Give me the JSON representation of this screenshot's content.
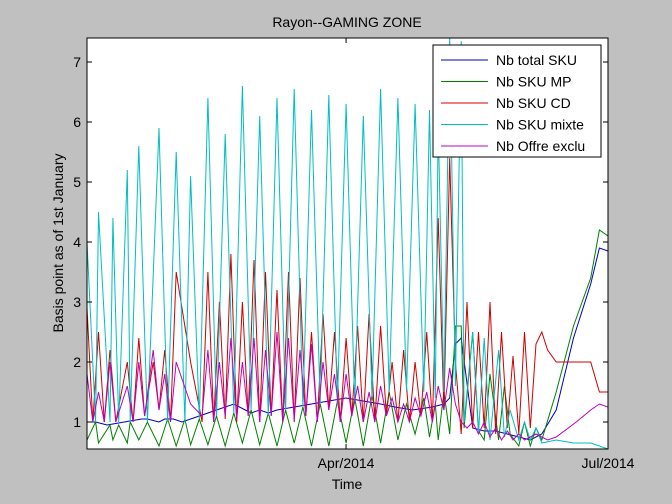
{
  "chart_data": {
    "type": "line",
    "title": "Rayon--GAMING ZONE",
    "xlabel": "Time",
    "ylabel": "Basis point as of 1st January",
    "x_ticks": [
      "Apr/2014",
      "Jul/2014"
    ],
    "xlim": [
      0,
      181
    ],
    "x_tick_positions": [
      90,
      181
    ],
    "ylim": [
      0.55,
      7.4
    ],
    "y_ticks": [
      1,
      2,
      3,
      4,
      5,
      6,
      7
    ],
    "y_tick_labels": [
      "1",
      "2",
      "3",
      "4",
      "5",
      "6",
      "7"
    ],
    "legend_position": "top-right",
    "grid": false,
    "series": [
      {
        "name": "Nb total SKU",
        "color": "#0000bf",
        "x": [
          0,
          3,
          7,
          13,
          19,
          21,
          25,
          27,
          30,
          33,
          39,
          45,
          51,
          55,
          57,
          60,
          63,
          66,
          72,
          78,
          84,
          90,
          96,
          102,
          107,
          113,
          120,
          124,
          126,
          128,
          130,
          134,
          138,
          142,
          146,
          150,
          154,
          158,
          163,
          169,
          175,
          178,
          181
        ],
        "y": [
          1.0,
          1.0,
          0.95,
          1.0,
          1.05,
          1.05,
          1.0,
          1.05,
          1.05,
          1.0,
          1.1,
          1.2,
          1.3,
          1.2,
          1.15,
          1.2,
          1.15,
          1.2,
          1.25,
          1.3,
          1.35,
          1.4,
          1.35,
          1.3,
          1.25,
          1.2,
          1.25,
          1.3,
          1.4,
          2.3,
          2.4,
          0.9,
          0.85,
          0.85,
          0.8,
          0.75,
          0.7,
          0.8,
          1.2,
          2.4,
          3.3,
          3.9,
          3.85
        ]
      },
      {
        "name": "Nb SKU MP",
        "color": "#008000",
        "x": [
          0,
          3,
          4,
          8,
          9,
          11,
          14,
          15,
          18,
          21,
          25,
          28,
          31,
          34,
          36,
          39,
          42,
          45,
          48,
          51,
          54,
          57,
          60,
          63,
          66,
          69,
          72,
          75,
          78,
          81,
          84,
          87,
          90,
          93,
          96,
          99,
          102,
          105,
          108,
          111,
          114,
          117,
          119,
          121,
          122,
          124,
          126,
          128,
          130,
          131,
          134,
          136,
          138,
          140,
          143,
          145,
          147,
          150,
          152,
          154,
          156,
          158,
          163,
          169,
          175,
          178,
          181
        ],
        "y": [
          0.7,
          1.0,
          0.65,
          0.95,
          0.7,
          0.95,
          0.65,
          1.0,
          0.7,
          1.0,
          0.6,
          1.05,
          0.6,
          1.05,
          0.62,
          1.05,
          0.62,
          1.1,
          0.6,
          1.15,
          0.65,
          1.2,
          0.62,
          1.15,
          0.6,
          1.2,
          0.65,
          1.25,
          0.6,
          1.3,
          0.6,
          1.35,
          0.65,
          1.4,
          0.6,
          1.45,
          0.65,
          1.5,
          0.7,
          1.3,
          0.8,
          1.4,
          0.75,
          1.3,
          0.7,
          1.5,
          0.8,
          2.6,
          2.6,
          0.9,
          2.5,
          0.85,
          0.7,
          1.8,
          0.7,
          1.6,
          0.8,
          0.6,
          1.0,
          0.6,
          0.9,
          0.7,
          1.5,
          2.6,
          3.4,
          4.2,
          4.1
        ]
      },
      {
        "name": "Nb SKU CD",
        "color": "#d00000",
        "x": [
          0,
          2,
          4,
          6,
          8,
          10,
          14,
          16,
          18,
          20,
          23,
          25,
          27,
          29,
          31,
          36,
          40,
          42,
          44,
          46,
          48,
          50,
          52,
          54,
          56,
          58,
          60,
          62,
          64,
          66,
          68,
          70,
          72,
          74,
          76,
          78,
          80,
          82,
          84,
          86,
          88,
          90,
          92,
          94,
          96,
          98,
          100,
          102,
          104,
          106,
          108,
          110,
          112,
          114,
          116,
          118,
          120,
          122,
          124,
          126,
          128,
          130,
          132,
          134,
          136,
          138,
          140,
          142,
          144,
          146,
          148,
          150,
          152,
          154,
          156,
          158,
          160,
          163,
          170,
          175,
          178,
          181
        ],
        "y": [
          2.9,
          1.0,
          2.5,
          1.0,
          2.2,
          1.0,
          2.0,
          1.0,
          2.4,
          1.1,
          2.0,
          1.2,
          2.2,
          1.0,
          3.5,
          2.0,
          1.0,
          3.5,
          1.0,
          3.0,
          1.05,
          3.8,
          1.0,
          3.0,
          1.1,
          3.7,
          1.0,
          3.5,
          1.1,
          3.2,
          1.0,
          3.5,
          1.0,
          3.4,
          1.1,
          2.5,
          1.0,
          2.8,
          1.2,
          2.5,
          1.0,
          2.4,
          1.1,
          2.6,
          1.0,
          2.8,
          1.0,
          2.6,
          1.1,
          2.0,
          1.0,
          2.2,
          1.0,
          2.0,
          1.1,
          2.5,
          1.0,
          4.4,
          1.2,
          5.4,
          2.0,
          0.8,
          3.0,
          0.9,
          2.5,
          0.9,
          3.0,
          0.8,
          2.5,
          0.9,
          2.1,
          0.8,
          2.5,
          0.9,
          2.3,
          2.5,
          2.2,
          2.0,
          2.0,
          2.0,
          1.5,
          1.5
        ]
      },
      {
        "name": "Nb SKU mixte",
        "color": "#00bfbf",
        "x": [
          0,
          3,
          4,
          8,
          9,
          11,
          14,
          15,
          18,
          21,
          25,
          28,
          31,
          34,
          36,
          39,
          42,
          45,
          48,
          51,
          54,
          57,
          60,
          63,
          66,
          69,
          72,
          75,
          78,
          81,
          84,
          87,
          90,
          93,
          96,
          99,
          102,
          105,
          108,
          111,
          114,
          117,
          119,
          121,
          122,
          124,
          126,
          128,
          130,
          131,
          134,
          136,
          138,
          140,
          143,
          145,
          147,
          150,
          152,
          154,
          156,
          158,
          163,
          169,
          175,
          178,
          181
        ],
        "y": [
          4.0,
          1.0,
          4.5,
          1.0,
          4.4,
          1.0,
          5.2,
          1.0,
          5.6,
          1.0,
          5.9,
          1.0,
          5.5,
          1.0,
          5.1,
          1.05,
          6.4,
          1.1,
          5.8,
          1.15,
          6.6,
          1.2,
          6.1,
          1.1,
          6.4,
          1.2,
          6.55,
          1.25,
          6.2,
          1.3,
          6.45,
          1.3,
          6.3,
          1.3,
          6.1,
          1.4,
          6.55,
          1.5,
          6.4,
          1.5,
          6.3,
          1.5,
          6.2,
          1.4,
          6.0,
          1.5,
          7.4,
          1.6,
          7.35,
          1.0,
          2.5,
          0.8,
          2.4,
          0.7,
          2.2,
          0.75,
          1.2,
          0.7,
          1.0,
          0.7,
          0.9,
          0.65,
          0.7,
          0.65,
          0.65,
          0.6,
          0.55
        ]
      },
      {
        "name": "Nb Offre exclu",
        "color": "#bf00bf",
        "x": [
          0,
          2,
          4,
          6,
          8,
          10,
          14,
          16,
          18,
          20,
          23,
          25,
          27,
          29,
          31,
          36,
          40,
          42,
          44,
          46,
          48,
          50,
          52,
          54,
          56,
          58,
          60,
          62,
          64,
          66,
          68,
          70,
          72,
          74,
          76,
          78,
          80,
          82,
          84,
          86,
          88,
          90,
          92,
          94,
          96,
          98,
          100,
          102,
          104,
          106,
          108,
          110,
          112,
          114,
          116,
          118,
          120,
          122,
          124,
          126,
          128,
          130,
          132,
          134,
          136,
          138,
          140,
          142,
          144,
          146,
          148,
          150,
          152,
          154,
          156,
          158,
          160,
          163,
          170,
          175,
          178,
          181
        ],
        "y": [
          1.8,
          1.0,
          1.5,
          1.0,
          2.0,
          1.0,
          1.6,
          1.0,
          2.0,
          1.1,
          2.2,
          1.2,
          1.8,
          1.0,
          2.0,
          1.3,
          1.1,
          2.2,
          1.0,
          2.0,
          1.1,
          2.4,
          1.05,
          2.0,
          1.1,
          2.4,
          1.0,
          2.2,
          1.1,
          2.5,
          1.0,
          2.4,
          1.05,
          2.2,
          1.1,
          2.3,
          1.0,
          2.0,
          1.2,
          1.8,
          1.0,
          1.8,
          1.1,
          1.6,
          1.0,
          1.5,
          1.0,
          1.6,
          1.1,
          1.4,
          1.0,
          1.3,
          1.0,
          1.4,
          1.1,
          1.5,
          1.0,
          1.6,
          1.2,
          1.9,
          1.3,
          1.0,
          0.9,
          1.0,
          0.8,
          1.0,
          0.75,
          0.9,
          0.7,
          0.85,
          0.7,
          0.8,
          0.7,
          0.75,
          0.8,
          0.75,
          0.7,
          0.75,
          1.0,
          1.2,
          1.3,
          1.25
        ]
      }
    ]
  }
}
